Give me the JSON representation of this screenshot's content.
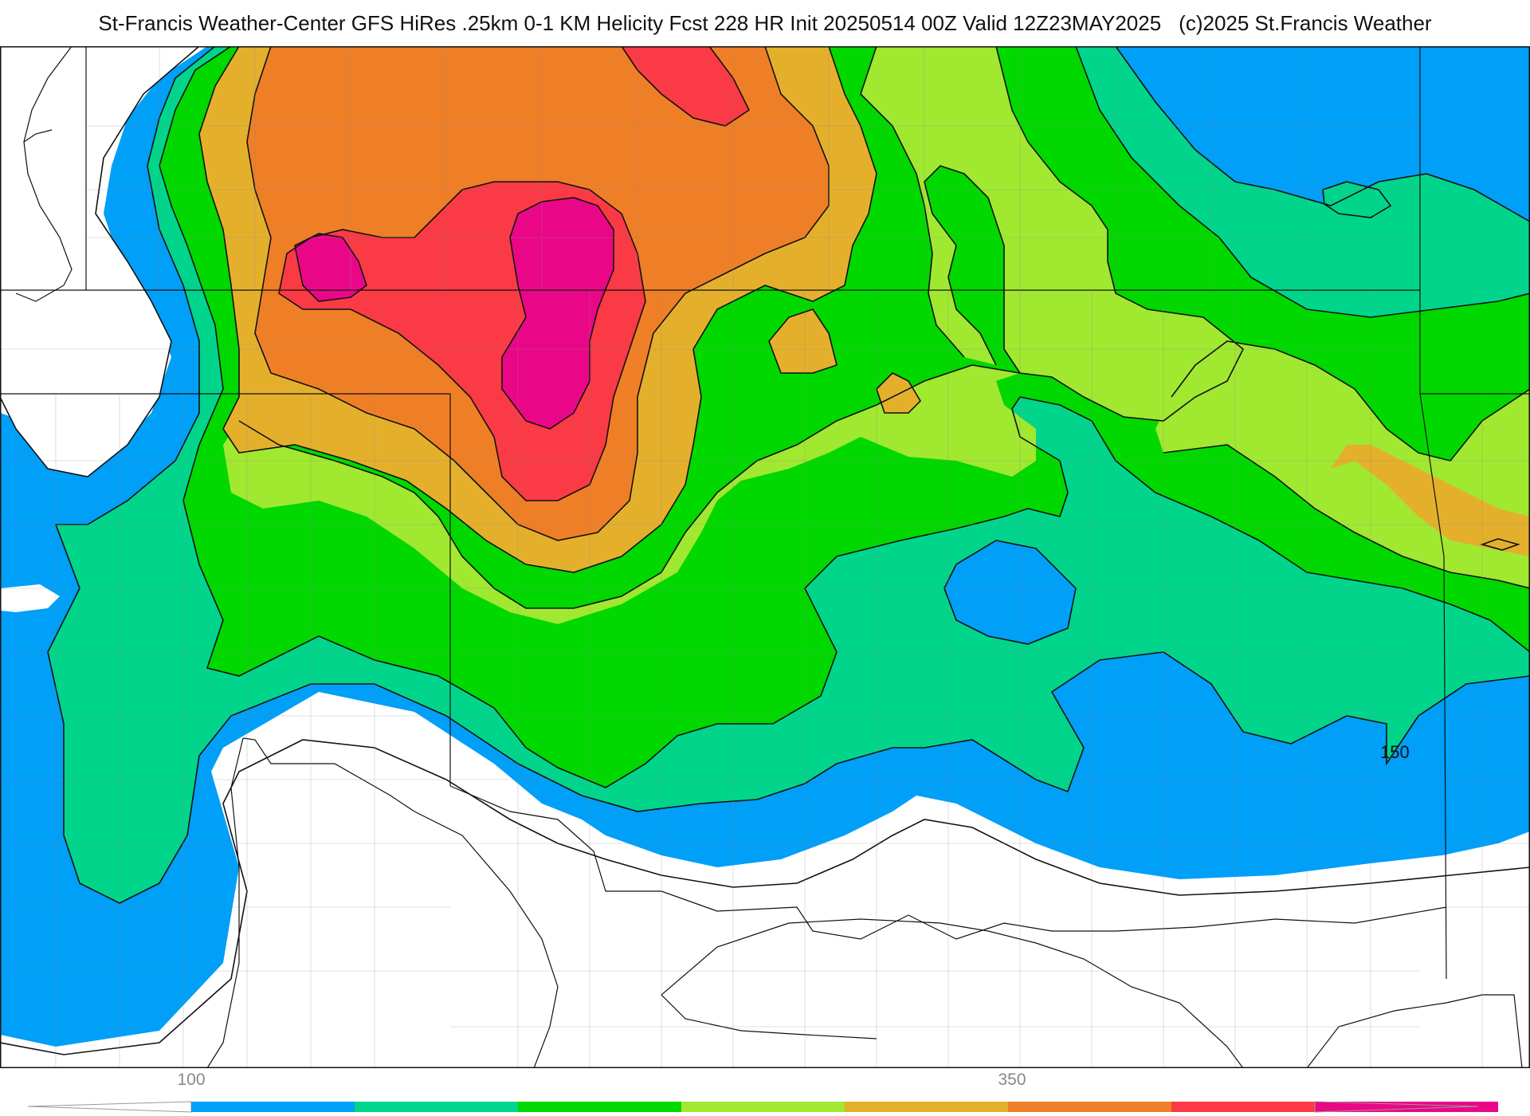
{
  "title": {
    "main": "St-Francis Weather-Center GFS HiRes .25km 0-1 KM Helicity Fcst 228 HR Init 20250514 00Z  Valid 12Z23MAY2025",
    "copyright": "(c)2025 St.Francis Weather"
  },
  "map": {
    "contour_label": "150",
    "fill_colors": {
      "below": "#ffffff",
      "band_1": "#009ff8",
      "band_2": "#00d58b",
      "band_3": "#00d800",
      "band_4": "#a1e830",
      "band_5": "#e4b02c",
      "band_6": "#ef7f27",
      "band_7": "#fa3a44",
      "band_8": "#ea0787"
    }
  },
  "colorbar": {
    "tick_labels": [
      "100",
      "350"
    ],
    "colors": [
      "#009ff8",
      "#00d58b",
      "#00d800",
      "#a1e830",
      "#e4b02c",
      "#ef7f27",
      "#fa3a44",
      "#ea0787"
    ]
  }
}
